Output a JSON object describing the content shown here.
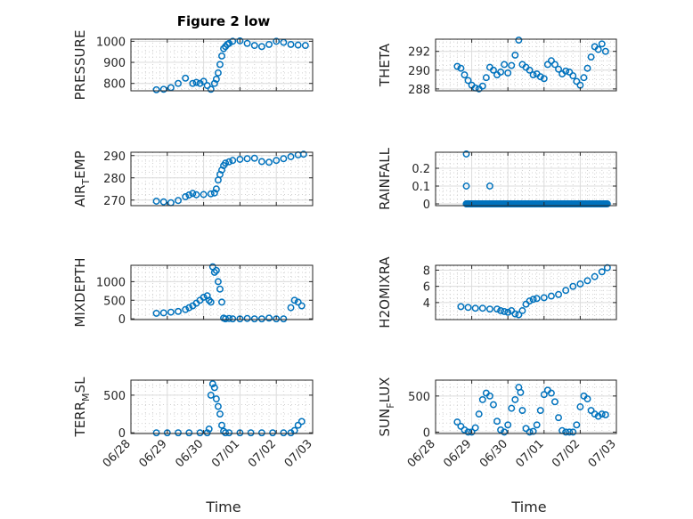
{
  "figure": {
    "title": "Figure 2 low",
    "xlabel": "Time",
    "marker_color": "#0072BD"
  },
  "chart_data": [
    {
      "type": "scatter",
      "title": "Figure 2 low",
      "ylabel": "PRESSURE",
      "ylabel_parts": [
        "PRESSURE"
      ],
      "xlim": [
        "06/28",
        "07/03"
      ],
      "ylim": [
        765,
        1010
      ],
      "yticks": [
        800,
        900,
        1000
      ],
      "grid": true,
      "minor_grid": true,
      "series": [
        {
          "x_days": [
            0.7,
            0.9,
            1.1,
            1.3,
            1.5,
            1.7,
            1.8,
            1.9,
            2.0,
            2.1,
            2.2,
            2.3,
            2.35,
            2.4,
            2.45,
            2.5,
            2.55,
            2.6,
            2.65,
            2.7,
            2.8,
            3.0,
            3.2,
            3.4,
            3.6,
            3.8,
            4.0,
            4.2,
            4.4,
            4.6,
            4.8
          ],
          "y": [
            770,
            772,
            780,
            800,
            825,
            800,
            805,
            800,
            810,
            790,
            772,
            800,
            820,
            850,
            890,
            930,
            965,
            975,
            985,
            990,
            1000,
            1002,
            990,
            980,
            975,
            985,
            1000,
            995,
            985,
            982,
            980
          ]
        }
      ]
    },
    {
      "type": "scatter",
      "title": "",
      "ylabel": "THETA",
      "ylabel_parts": [
        "THETA"
      ],
      "xlim": [
        "06/28",
        "07/03"
      ],
      "ylim": [
        287.8,
        293.3
      ],
      "yticks": [
        288,
        290,
        292
      ],
      "grid": true,
      "minor_grid": true,
      "series": [
        {
          "x_days": [
            0.6,
            0.7,
            0.8,
            0.9,
            1.0,
            1.1,
            1.2,
            1.3,
            1.4,
            1.5,
            1.6,
            1.7,
            1.8,
            1.9,
            2.0,
            2.1,
            2.2,
            2.3,
            2.4,
            2.5,
            2.6,
            2.7,
            2.8,
            2.9,
            3.0,
            3.1,
            3.2,
            3.3,
            3.4,
            3.5,
            3.6,
            3.7,
            3.8,
            3.9,
            4.0,
            4.1,
            4.2,
            4.3,
            4.4,
            4.5,
            4.6,
            4.7
          ],
          "y": [
            290.4,
            290.2,
            289.5,
            288.9,
            288.4,
            288.1,
            288.0,
            288.3,
            289.2,
            290.3,
            290.0,
            289.5,
            289.8,
            290.6,
            289.7,
            290.5,
            291.6,
            293.2,
            290.6,
            290.3,
            290.0,
            289.5,
            289.6,
            289.3,
            289.1,
            290.6,
            291.0,
            290.6,
            290.1,
            289.6,
            289.9,
            289.8,
            289.4,
            288.8,
            288.4,
            289.2,
            290.2,
            291.4,
            292.5,
            292.2,
            292.8,
            292.0
          ]
        }
      ]
    },
    {
      "type": "scatter",
      "title": "",
      "ylabel": "AIR_TEMP",
      "ylabel_parts": [
        "AIR",
        "T",
        "EMP"
      ],
      "xlim": [
        "06/28",
        "07/03"
      ],
      "ylim": [
        267.5,
        291.5
      ],
      "yticks": [
        270,
        280,
        290
      ],
      "grid": true,
      "minor_grid": true,
      "series": [
        {
          "x_days": [
            0.7,
            0.9,
            1.1,
            1.3,
            1.5,
            1.6,
            1.7,
            1.8,
            2.0,
            2.2,
            2.3,
            2.35,
            2.4,
            2.45,
            2.5,
            2.55,
            2.6,
            2.7,
            2.8,
            3.0,
            3.2,
            3.4,
            3.6,
            3.8,
            4.0,
            4.2,
            4.4,
            4.6,
            4.75
          ],
          "y": [
            269.5,
            269.2,
            268.8,
            269.8,
            271.5,
            272.3,
            273.0,
            272.4,
            272.5,
            272.8,
            273.2,
            275.0,
            279.0,
            281.5,
            283.5,
            285.5,
            286.6,
            287.2,
            287.8,
            288.3,
            288.6,
            288.8,
            287.3,
            287.0,
            287.8,
            288.6,
            289.5,
            290.3,
            290.6
          ]
        }
      ]
    },
    {
      "type": "scatter",
      "title": "",
      "ylabel": "RAINFALL",
      "ylabel_parts": [
        "RAINFALL"
      ],
      "xlim": [
        "06/28",
        "07/03"
      ],
      "ylim": [
        -0.01,
        0.29
      ],
      "yticks": [
        0,
        0.1,
        0.2
      ],
      "grid": true,
      "minor_grid": true,
      "series": [
        {
          "x_days": [
            0.85,
            0.85,
            0.85,
            1.5
          ],
          "y": [
            0,
            0.1,
            0.28,
            0.1
          ]
        }
      ],
      "zero_band_days": [
        0.85,
        4.75
      ]
    },
    {
      "type": "scatter",
      "title": "",
      "ylabel": "MIXDEPTH",
      "ylabel_parts": [
        "MIXDEPTH"
      ],
      "xlim": [
        "06/28",
        "07/03"
      ],
      "ylim": [
        -20,
        1440
      ],
      "yticks": [
        0,
        500,
        1000
      ],
      "grid": true,
      "minor_grid": true,
      "series": [
        {
          "x_days": [
            0.7,
            0.9,
            1.1,
            1.3,
            1.5,
            1.6,
            1.7,
            1.8,
            1.9,
            2.0,
            2.1,
            2.15,
            2.2,
            2.25,
            2.3,
            2.35,
            2.4,
            2.45,
            2.5,
            2.55,
            2.6,
            2.7,
            2.8,
            3.0,
            3.2,
            3.4,
            3.6,
            3.8,
            4.0,
            4.2,
            4.4,
            4.5,
            4.6,
            4.7
          ],
          "y": [
            150,
            160,
            180,
            200,
            250,
            300,
            350,
            420,
            500,
            580,
            620,
            500,
            450,
            1400,
            1250,
            1300,
            1000,
            800,
            450,
            20,
            0,
            10,
            0,
            0,
            10,
            0,
            0,
            20,
            0,
            0,
            300,
            500,
            450,
            350
          ]
        }
      ]
    },
    {
      "type": "scatter",
      "title": "",
      "ylabel": "H2OMIXRA",
      "ylabel_parts": [
        "H2OMIXRA"
      ],
      "xlim": [
        "06/28",
        "07/03"
      ],
      "ylim": [
        1.9,
        8.6
      ],
      "yticks": [
        4,
        6,
        8
      ],
      "grid": true,
      "minor_grid": true,
      "series": [
        {
          "x_days": [
            0.7,
            0.9,
            1.1,
            1.3,
            1.5,
            1.7,
            1.8,
            1.9,
            2.0,
            2.1,
            2.2,
            2.3,
            2.4,
            2.5,
            2.6,
            2.7,
            2.8,
            3.0,
            3.2,
            3.4,
            3.6,
            3.8,
            4.0,
            4.2,
            4.4,
            4.6,
            4.75
          ],
          "y": [
            3.5,
            3.4,
            3.3,
            3.3,
            3.2,
            3.2,
            3.0,
            2.9,
            2.8,
            3.0,
            2.6,
            2.5,
            3.0,
            3.8,
            4.2,
            4.4,
            4.5,
            4.6,
            4.8,
            5.0,
            5.5,
            6.0,
            6.3,
            6.7,
            7.2,
            7.8,
            8.3
          ]
        }
      ]
    },
    {
      "type": "scatter",
      "title": "",
      "ylabel": "TERR_MSL",
      "ylabel_parts": [
        "TERR",
        "M",
        "SL"
      ],
      "xlim": [
        "06/28",
        "07/03"
      ],
      "ylim": [
        -10,
        700
      ],
      "yticks": [
        0,
        500
      ],
      "grid": true,
      "minor_grid": true,
      "series": [
        {
          "x_days": [
            0.7,
            1.0,
            1.3,
            1.6,
            1.9,
            2.1,
            2.15,
            2.2,
            2.25,
            2.3,
            2.35,
            2.4,
            2.45,
            2.5,
            2.55,
            2.6,
            2.7,
            3.0,
            3.3,
            3.6,
            3.9,
            4.2,
            4.4,
            4.5,
            4.6,
            4.7
          ],
          "y": [
            0,
            0,
            0,
            0,
            0,
            0,
            50,
            500,
            650,
            600,
            450,
            350,
            250,
            100,
            20,
            0,
            0,
            0,
            0,
            0,
            0,
            0,
            0,
            30,
            100,
            150
          ]
        }
      ]
    },
    {
      "type": "scatter",
      "title": "",
      "ylabel": "SUN_FLUX",
      "ylabel_parts": [
        "SUN",
        "F",
        "LUX"
      ],
      "xlim": [
        "06/28",
        "07/03"
      ],
      "ylim": [
        -20,
        720
      ],
      "yticks": [
        0,
        500
      ],
      "grid": true,
      "minor_grid": true,
      "series": [
        {
          "x_days": [
            0.6,
            0.7,
            0.8,
            0.9,
            1.0,
            1.1,
            1.2,
            1.3,
            1.4,
            1.5,
            1.6,
            1.7,
            1.8,
            1.9,
            2.0,
            2.1,
            2.2,
            2.3,
            2.35,
            2.4,
            2.5,
            2.6,
            2.7,
            2.8,
            2.9,
            3.0,
            3.1,
            3.2,
            3.3,
            3.4,
            3.5,
            3.6,
            3.7,
            3.8,
            3.9,
            4.0,
            4.1,
            4.2,
            4.3,
            4.4,
            4.5,
            4.6,
            4.7
          ],
          "y": [
            140,
            80,
            30,
            0,
            0,
            60,
            250,
            450,
            540,
            500,
            380,
            150,
            30,
            0,
            100,
            330,
            450,
            620,
            550,
            300,
            50,
            0,
            10,
            100,
            300,
            520,
            580,
            540,
            420,
            200,
            20,
            0,
            0,
            0,
            100,
            350,
            500,
            460,
            300,
            250,
            220,
            250,
            240
          ]
        }
      ]
    }
  ],
  "x_ticks": [
    "06/28",
    "06/29",
    "06/30",
    "07/01",
    "07/02",
    "07/03"
  ]
}
